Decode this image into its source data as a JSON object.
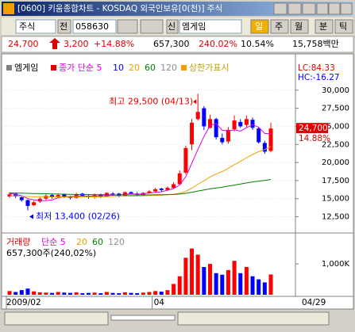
{
  "window": {
    "title": "[0600] 키움종합차트 - KOSDAQ 외국인보유[0(천)] 주식"
  },
  "toolbar": {
    "market": "주식",
    "prev": "전",
    "code": "058630",
    "new": "신",
    "name": "엠게임",
    "periods": [
      "일",
      "주",
      "월",
      "분",
      "틱"
    ]
  },
  "info": {
    "price": "24,700",
    "change": "3,200",
    "change_pct": "+14.88%",
    "volume": "657,300",
    "volume_pct": "240.02%",
    "rate": "10.54%",
    "amount": "15,758백만"
  },
  "chart_data": {
    "type": "candlestick",
    "stock_name": "엠게임",
    "price_legend": "종가 단순 5",
    "legend_other": [
      {
        "text": "10",
        "color": "#0000ff"
      },
      {
        "text": "120",
        "color": "#909090"
      }
    ],
    "limit_label": "상한가표시",
    "lc": "LC:84.33",
    "hc": "HC:-16.27",
    "high_annotation": "최고 29,500 (04/13)",
    "low_annotation": "최저 13,400 (02/26)",
    "last_label": "24,700",
    "last_pct": "14.88%",
    "categories": [
      "2009/02",
      null,
      null,
      null,
      null,
      null,
      null,
      null,
      null,
      null,
      null,
      null,
      null,
      null,
      null,
      null,
      null,
      null,
      null,
      null,
      null,
      null,
      null,
      null,
      "04",
      null,
      null,
      null,
      null,
      null,
      null,
      null,
      null,
      null,
      null,
      null,
      null,
      null,
      null,
      null,
      null,
      null,
      null,
      "04/29"
    ],
    "open": [
      15300,
      15700,
      15200,
      14800,
      14100,
      14600,
      15000,
      15500,
      15200,
      15600,
      15300,
      15100,
      15700,
      15400,
      15200,
      15600,
      15300,
      15700,
      15700,
      15400,
      15900,
      15700,
      15500,
      15800,
      16000,
      16400,
      16200,
      16500,
      17000,
      18600,
      22500,
      26000,
      27500,
      24800,
      26000,
      23400,
      22900,
      24600,
      25600,
      25200,
      25900,
      24700,
      22700,
      21600
    ],
    "high": [
      15900,
      15800,
      15400,
      14900,
      14700,
      15200,
      15600,
      15700,
      15700,
      15700,
      15400,
      15800,
      15800,
      15500,
      15700,
      15700,
      15900,
      15900,
      15800,
      16000,
      16000,
      15900,
      15900,
      16200,
      16500,
      16500,
      16700,
      17300,
      18900,
      22300,
      26000,
      29500,
      27800,
      26600,
      26200,
      24000,
      24900,
      26500,
      26000,
      26500,
      26200,
      24900,
      23000,
      25500
    ],
    "low": [
      15100,
      15100,
      14600,
      13400,
      14000,
      14400,
      14800,
      15000,
      15100,
      15100,
      14900,
      15000,
      15300,
      15000,
      15000,
      15100,
      15200,
      15400,
      15200,
      15300,
      15600,
      15300,
      15400,
      15700,
      15900,
      16000,
      16100,
      16400,
      16900,
      18400,
      21700,
      25800,
      24500,
      24700,
      23200,
      22500,
      22600,
      24300,
      24800,
      24900,
      24500,
      22600,
      21200,
      21400
    ],
    "close": [
      15600,
      15300,
      14800,
      14000,
      14500,
      15000,
      15400,
      15200,
      15500,
      15300,
      15100,
      15600,
      15400,
      15200,
      15500,
      15300,
      15800,
      15600,
      15400,
      15900,
      15700,
      15500,
      15800,
      16000,
      16300,
      16200,
      16500,
      17000,
      18500,
      22000,
      25500,
      27000,
      25000,
      26000,
      23500,
      22800,
      24500,
      25800,
      25000,
      26000,
      24800,
      22800,
      21500,
      24700
    ],
    "volume": [
      120000,
      90000,
      150000,
      200000,
      110000,
      80000,
      70000,
      60000,
      90000,
      70000,
      60000,
      80000,
      50000,
      60000,
      70000,
      50000,
      90000,
      60000,
      50000,
      80000,
      60000,
      50000,
      70000,
      90000,
      120000,
      100000,
      150000,
      350000,
      600000,
      1200000,
      1500000,
      1300000,
      900000,
      1000000,
      700000,
      650000,
      800000,
      1100000,
      700000,
      900000,
      600000,
      500000,
      400000,
      657300
    ],
    "series": [
      {
        "name": "5",
        "color": "#e000e0",
        "values": [
          15700,
          15600,
          15400,
          15000,
          14840,
          14720,
          14740,
          14820,
          15120,
          15280,
          15300,
          15340,
          15380,
          15320,
          15360,
          15400,
          15440,
          15480,
          15520,
          15600,
          15680,
          15620,
          15660,
          15780,
          15860,
          15960,
          16160,
          16400,
          16900,
          18040,
          19900,
          21800,
          23600,
          25100,
          25400,
          24460,
          24360,
          24520,
          24320,
          24820,
          25220,
          24880,
          24020,
          23960
        ]
      },
      {
        "name": "20",
        "color": "#f0a000",
        "values": [
          15400,
          15380,
          15350,
          15300,
          15280,
          15270,
          15260,
          15250,
          15240,
          15230,
          15220,
          15220,
          15230,
          15240,
          15250,
          15260,
          15280,
          15300,
          15320,
          15340,
          15360,
          15370,
          15400,
          15430,
          15460,
          15500,
          15550,
          15620,
          15750,
          16000,
          16450,
          17000,
          17480,
          18000,
          18400,
          18750,
          19200,
          19700,
          20150,
          20650,
          21100,
          21500,
          21800,
          22200
        ]
      },
      {
        "name": "60",
        "color": "#008000",
        "values": [
          15800,
          15780,
          15760,
          15740,
          15720,
          15700,
          15680,
          15660,
          15640,
          15620,
          15600,
          15590,
          15580,
          15570,
          15560,
          15550,
          15540,
          15530,
          15520,
          15520,
          15510,
          15510,
          15510,
          15520,
          15530,
          15540,
          15560,
          15590,
          15640,
          15740,
          15890,
          16060,
          16200,
          16360,
          16480,
          16590,
          16730,
          16880,
          17020,
          17170,
          17310,
          17420,
          17520,
          17650
        ]
      }
    ],
    "up_color": "#ff0000",
    "down_color": "#0000ff",
    "ylim": [
      10700,
      33700
    ],
    "yticks": [
      {
        "value": 12500,
        "label": "12,500"
      },
      {
        "value": 15000,
        "label": "15,000"
      },
      {
        "value": 17500,
        "label": "17,500"
      },
      {
        "value": 20000,
        "label": "20,000"
      },
      {
        "value": 22500,
        "label": "22,500"
      },
      {
        "value": 25000,
        "label": "25,000"
      },
      {
        "value": 27500,
        "label": "27,500"
      },
      {
        "value": 30000,
        "label": "30,000"
      }
    ],
    "volume_legend": [
      "거래량",
      "단순 5",
      "20",
      "60",
      "120"
    ],
    "volume_note": "657,300주(240,02%)",
    "y2lim": [
      0,
      1850000
    ],
    "y2ticks": [
      {
        "value": 1000000,
        "label": "1,000K"
      }
    ]
  }
}
